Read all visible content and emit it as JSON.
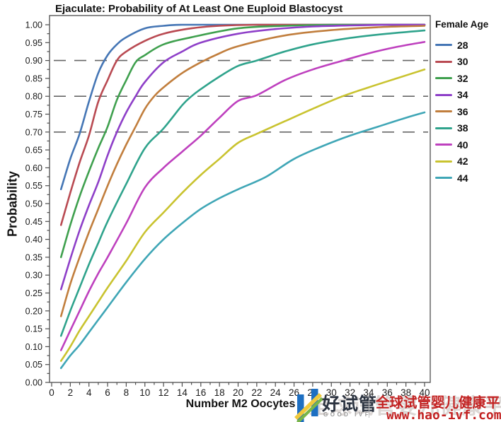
{
  "chart_data": {
    "type": "line",
    "title": "Ejaculate: Probability of At Least One Euploid Blastocyst",
    "xlabel": "Number M2 Oocytes",
    "ylabel": "Probability",
    "xlim": [
      0,
      40
    ],
    "ylim": [
      0.0,
      1.0
    ],
    "x_major_step": 2,
    "x_minor_step": 1,
    "y_major_step": 0.05,
    "y_minor_step": 0.025,
    "grid": false,
    "legend_title": "Female Age",
    "legend_position": "right",
    "frame_color": "#4d4d4d",
    "tick_label_color": "#1a1a1a",
    "reference_lines": {
      "style": "dashed",
      "color": "#666666",
      "values": [
        0.9,
        0.8,
        0.7
      ]
    },
    "series": [
      {
        "name": "28",
        "color": "#4576B5",
        "points": [
          [
            1,
            0.54
          ],
          [
            2,
            0.625
          ],
          [
            3,
            0.695
          ],
          [
            4,
            0.785
          ],
          [
            5,
            0.865
          ],
          [
            6,
            0.915
          ],
          [
            7,
            0.945
          ],
          [
            8,
            0.965
          ],
          [
            10,
            0.99
          ],
          [
            12,
            0.997
          ],
          [
            14,
            1.0
          ],
          [
            20,
            1.0
          ],
          [
            30,
            1.0
          ],
          [
            40,
            1.0
          ]
        ]
      },
      {
        "name": "30",
        "color": "#B94A52",
        "points": [
          [
            1,
            0.44
          ],
          [
            2,
            0.53
          ],
          [
            3,
            0.615
          ],
          [
            4,
            0.69
          ],
          [
            5,
            0.785
          ],
          [
            6,
            0.845
          ],
          [
            7,
            0.9
          ],
          [
            8,
            0.925
          ],
          [
            10,
            0.955
          ],
          [
            12,
            0.975
          ],
          [
            15,
            0.99
          ],
          [
            18,
            0.997
          ],
          [
            22,
            1.0
          ],
          [
            30,
            1.0
          ],
          [
            40,
            1.0
          ]
        ]
      },
      {
        "name": "32",
        "color": "#3FA04E",
        "points": [
          [
            1,
            0.35
          ],
          [
            2,
            0.44
          ],
          [
            3,
            0.52
          ],
          [
            4,
            0.59
          ],
          [
            5,
            0.655
          ],
          [
            6,
            0.715
          ],
          [
            7,
            0.79
          ],
          [
            8,
            0.845
          ],
          [
            9,
            0.895
          ],
          [
            10,
            0.915
          ],
          [
            12,
            0.945
          ],
          [
            15,
            0.965
          ],
          [
            20,
            0.99
          ],
          [
            25,
            0.997
          ],
          [
            30,
            1.0
          ],
          [
            40,
            1.0
          ]
        ]
      },
      {
        "name": "34",
        "color": "#8E3FC8",
        "points": [
          [
            1,
            0.26
          ],
          [
            2,
            0.345
          ],
          [
            3,
            0.425
          ],
          [
            4,
            0.495
          ],
          [
            5,
            0.56
          ],
          [
            6,
            0.635
          ],
          [
            7,
            0.7
          ],
          [
            8,
            0.755
          ],
          [
            9,
            0.8
          ],
          [
            10,
            0.84
          ],
          [
            12,
            0.895
          ],
          [
            14,
            0.925
          ],
          [
            16,
            0.95
          ],
          [
            20,
            0.975
          ],
          [
            24,
            0.988
          ],
          [
            28,
            0.995
          ],
          [
            32,
            0.998
          ],
          [
            36,
            1.0
          ],
          [
            40,
            1.0
          ]
        ]
      },
      {
        "name": "36",
        "color": "#C17E3D",
        "points": [
          [
            1,
            0.185
          ],
          [
            2,
            0.275
          ],
          [
            3,
            0.35
          ],
          [
            4,
            0.42
          ],
          [
            5,
            0.485
          ],
          [
            6,
            0.55
          ],
          [
            7,
            0.61
          ],
          [
            8,
            0.665
          ],
          [
            9,
            0.715
          ],
          [
            10,
            0.765
          ],
          [
            11,
            0.8
          ],
          [
            12,
            0.825
          ],
          [
            14,
            0.865
          ],
          [
            16,
            0.895
          ],
          [
            18,
            0.92
          ],
          [
            20,
            0.94
          ],
          [
            25,
            0.97
          ],
          [
            30,
            0.985
          ],
          [
            35,
            0.993
          ],
          [
            40,
            0.997
          ]
        ]
      },
      {
        "name": "38",
        "color": "#2FA38C",
        "points": [
          [
            1,
            0.13
          ],
          [
            2,
            0.2
          ],
          [
            3,
            0.265
          ],
          [
            4,
            0.33
          ],
          [
            5,
            0.39
          ],
          [
            6,
            0.45
          ],
          [
            8,
            0.555
          ],
          [
            10,
            0.655
          ],
          [
            12,
            0.71
          ],
          [
            14,
            0.775
          ],
          [
            15,
            0.8
          ],
          [
            16,
            0.82
          ],
          [
            18,
            0.855
          ],
          [
            20,
            0.885
          ],
          [
            22,
            0.9
          ],
          [
            25,
            0.925
          ],
          [
            28,
            0.945
          ],
          [
            32,
            0.963
          ],
          [
            36,
            0.975
          ],
          [
            40,
            0.984
          ]
        ]
      },
      {
        "name": "40",
        "color": "#BE40BE",
        "points": [
          [
            1,
            0.09
          ],
          [
            2,
            0.145
          ],
          [
            3,
            0.2
          ],
          [
            4,
            0.255
          ],
          [
            5,
            0.305
          ],
          [
            6,
            0.35
          ],
          [
            8,
            0.445
          ],
          [
            10,
            0.545
          ],
          [
            12,
            0.6
          ],
          [
            14,
            0.645
          ],
          [
            16,
            0.69
          ],
          [
            18,
            0.74
          ],
          [
            20,
            0.787
          ],
          [
            22,
            0.803
          ],
          [
            25,
            0.845
          ],
          [
            28,
            0.875
          ],
          [
            31,
            0.898
          ],
          [
            34,
            0.92
          ],
          [
            37,
            0.938
          ],
          [
            40,
            0.952
          ]
        ]
      },
      {
        "name": "42",
        "color": "#C9C32F",
        "points": [
          [
            1,
            0.06
          ],
          [
            2,
            0.1
          ],
          [
            3,
            0.145
          ],
          [
            4,
            0.185
          ],
          [
            5,
            0.225
          ],
          [
            6,
            0.265
          ],
          [
            8,
            0.34
          ],
          [
            10,
            0.42
          ],
          [
            12,
            0.475
          ],
          [
            14,
            0.53
          ],
          [
            16,
            0.58
          ],
          [
            18,
            0.625
          ],
          [
            20,
            0.67
          ],
          [
            22,
            0.695
          ],
          [
            25,
            0.73
          ],
          [
            28,
            0.765
          ],
          [
            31,
            0.798
          ],
          [
            34,
            0.825
          ],
          [
            37,
            0.85
          ],
          [
            40,
            0.875
          ]
        ]
      },
      {
        "name": "44",
        "color": "#3FA6B6",
        "points": [
          [
            1,
            0.04
          ],
          [
            2,
            0.075
          ],
          [
            3,
            0.105
          ],
          [
            4,
            0.14
          ],
          [
            5,
            0.175
          ],
          [
            6,
            0.21
          ],
          [
            8,
            0.28
          ],
          [
            10,
            0.345
          ],
          [
            12,
            0.4
          ],
          [
            14,
            0.445
          ],
          [
            16,
            0.485
          ],
          [
            18,
            0.515
          ],
          [
            20,
            0.54
          ],
          [
            23,
            0.575
          ],
          [
            26,
            0.625
          ],
          [
            29,
            0.66
          ],
          [
            32,
            0.69
          ],
          [
            35,
            0.715
          ],
          [
            38,
            0.74
          ],
          [
            40,
            0.755
          ]
        ]
      }
    ]
  },
  "watermark": {
    "brand_name": "好试管",
    "brand_sub": "GOOD IVF",
    "tagline": "全球试管婴儿健康平台",
    "url": "www.hao-ivf.com",
    "ghost_text": "全球试管婴儿健康平台",
    "brand_blue": "#1d6fc2",
    "accent_red": "#c32222"
  }
}
